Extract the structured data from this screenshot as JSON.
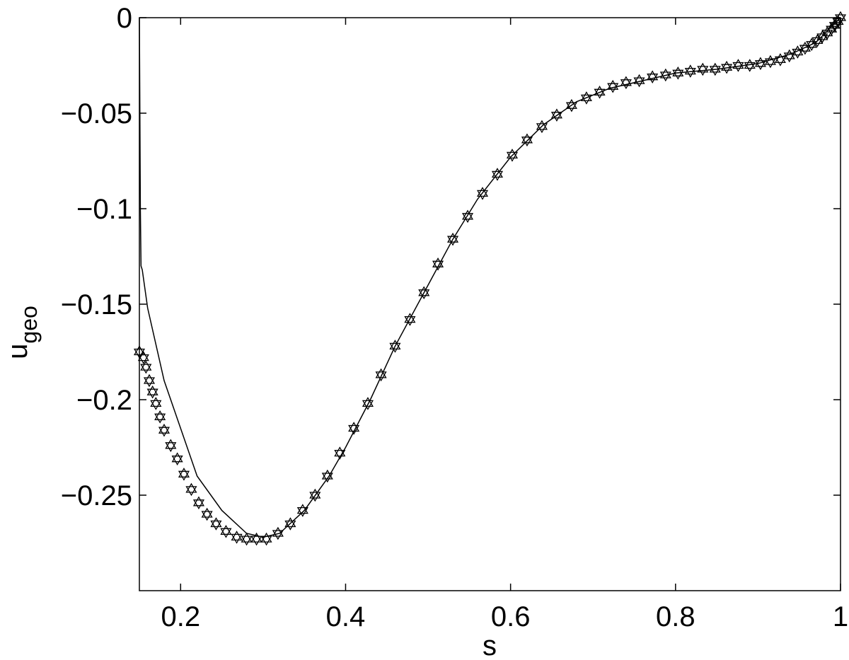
{
  "chart_data": {
    "type": "line",
    "xlabel": "s",
    "ylabel": "u",
    "ylabel_subscript": "geo",
    "xlim": [
      0.15,
      1
    ],
    "ylim": [
      -0.3,
      0
    ],
    "xticks": [
      0.2,
      0.4,
      0.6,
      0.8,
      1
    ],
    "yticks": [
      0,
      {
        "value": -0.05,
        "label": "−0.05"
      },
      {
        "value": -0.1,
        "label": "−0.1"
      },
      {
        "value": -0.15,
        "label": "−0.15"
      },
      {
        "value": -0.2,
        "label": "−0.2"
      },
      {
        "value": -0.25,
        "label": "−0.25"
      }
    ],
    "box": true,
    "series": [
      {
        "color": "#000000",
        "marker": "none",
        "linestyle": "solid",
        "x": [
          0.15,
          0.1505,
          0.1512,
          0.152,
          0.1535,
          0.16,
          0.18,
          0.2,
          0.22,
          0.25,
          0.28,
          0.3,
          0.32,
          0.35,
          0.38,
          0.4,
          0.43,
          0.46,
          0.5,
          0.53,
          0.56,
          0.6,
          0.64,
          0.68,
          0.72,
          0.76,
          0.8,
          0.85,
          0.9,
          0.94,
          0.97,
          1.0
        ],
        "values": [
          0,
          -0.04,
          -0.1,
          -0.13,
          -0.132,
          -0.152,
          -0.19,
          -0.215,
          -0.24,
          -0.258,
          -0.27,
          -0.272,
          -0.27,
          -0.258,
          -0.24,
          -0.225,
          -0.2,
          -0.172,
          -0.14,
          -0.116,
          -0.095,
          -0.073,
          -0.056,
          -0.044,
          -0.037,
          -0.033,
          -0.029,
          -0.027,
          -0.024,
          -0.019,
          -0.013,
          0
        ]
      },
      {
        "color": "#000000",
        "marker": "hexagram",
        "linestyle": "none",
        "x": [
          0.15,
          0.155,
          0.158,
          0.162,
          0.166,
          0.17,
          0.175,
          0.18,
          0.188,
          0.196,
          0.204,
          0.213,
          0.222,
          0.232,
          0.243,
          0.255,
          0.268,
          0.28,
          0.292,
          0.304,
          0.318,
          0.333,
          0.348,
          0.363,
          0.378,
          0.393,
          0.41,
          0.427,
          0.443,
          0.46,
          0.478,
          0.495,
          0.512,
          0.53,
          0.548,
          0.566,
          0.584,
          0.602,
          0.62,
          0.638,
          0.656,
          0.674,
          0.692,
          0.708,
          0.724,
          0.74,
          0.756,
          0.772,
          0.788,
          0.803,
          0.818,
          0.833,
          0.848,
          0.862,
          0.876,
          0.89,
          0.903,
          0.915,
          0.927,
          0.938,
          0.948,
          0.957,
          0.965,
          0.972,
          0.978,
          0.984,
          0.989,
          0.993,
          0.997,
          1.0
        ],
        "values": [
          -0.175,
          -0.178,
          -0.183,
          -0.19,
          -0.196,
          -0.202,
          -0.209,
          -0.216,
          -0.224,
          -0.231,
          -0.239,
          -0.247,
          -0.254,
          -0.26,
          -0.265,
          -0.269,
          -0.272,
          -0.273,
          -0.273,
          -0.273,
          -0.27,
          -0.265,
          -0.258,
          -0.25,
          -0.24,
          -0.228,
          -0.215,
          -0.202,
          -0.187,
          -0.172,
          -0.158,
          -0.144,
          -0.129,
          -0.116,
          -0.104,
          -0.092,
          -0.082,
          -0.072,
          -0.064,
          -0.057,
          -0.051,
          -0.046,
          -0.042,
          -0.039,
          -0.036,
          -0.034,
          -0.033,
          -0.031,
          -0.03,
          -0.029,
          -0.028,
          -0.027,
          -0.027,
          -0.026,
          -0.025,
          -0.025,
          -0.024,
          -0.023,
          -0.022,
          -0.02,
          -0.018,
          -0.016,
          -0.014,
          -0.012,
          -0.01,
          -0.008,
          -0.006,
          -0.004,
          -0.002,
          0
        ]
      }
    ]
  }
}
